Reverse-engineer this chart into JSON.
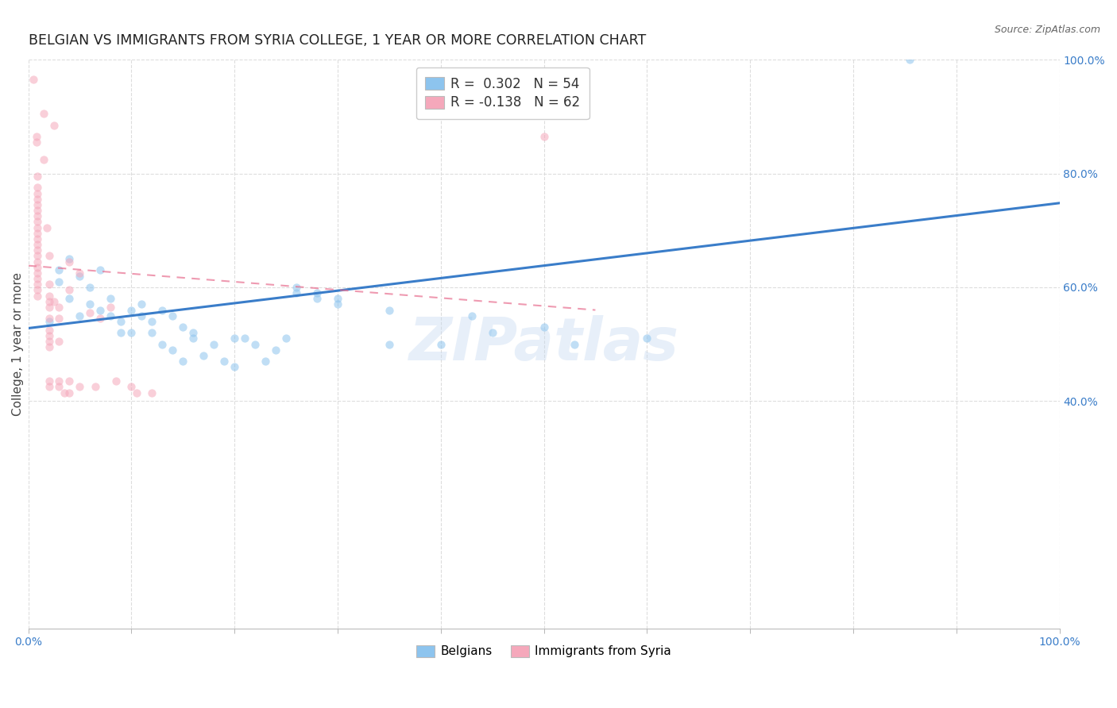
{
  "title": "BELGIAN VS IMMIGRANTS FROM SYRIA COLLEGE, 1 YEAR OR MORE CORRELATION CHART",
  "source": "Source: ZipAtlas.com",
  "ylabel": "College, 1 year or more",
  "xlim": [
    0.0,
    1.0
  ],
  "ylim": [
    0.0,
    1.0
  ],
  "watermark": "ZIPatlas",
  "blue_scatter": [
    [
      0.02,
      0.54
    ],
    [
      0.03,
      0.61
    ],
    [
      0.03,
      0.63
    ],
    [
      0.04,
      0.58
    ],
    [
      0.04,
      0.65
    ],
    [
      0.05,
      0.62
    ],
    [
      0.05,
      0.55
    ],
    [
      0.06,
      0.6
    ],
    [
      0.06,
      0.57
    ],
    [
      0.07,
      0.63
    ],
    [
      0.07,
      0.56
    ],
    [
      0.08,
      0.55
    ],
    [
      0.08,
      0.58
    ],
    [
      0.09,
      0.54
    ],
    [
      0.09,
      0.52
    ],
    [
      0.1,
      0.56
    ],
    [
      0.1,
      0.52
    ],
    [
      0.11,
      0.57
    ],
    [
      0.11,
      0.55
    ],
    [
      0.12,
      0.54
    ],
    [
      0.12,
      0.52
    ],
    [
      0.13,
      0.56
    ],
    [
      0.13,
      0.5
    ],
    [
      0.14,
      0.55
    ],
    [
      0.14,
      0.49
    ],
    [
      0.15,
      0.53
    ],
    [
      0.15,
      0.47
    ],
    [
      0.16,
      0.52
    ],
    [
      0.16,
      0.51
    ],
    [
      0.17,
      0.48
    ],
    [
      0.18,
      0.5
    ],
    [
      0.19,
      0.47
    ],
    [
      0.2,
      0.51
    ],
    [
      0.2,
      0.46
    ],
    [
      0.21,
      0.51
    ],
    [
      0.22,
      0.5
    ],
    [
      0.23,
      0.47
    ],
    [
      0.24,
      0.49
    ],
    [
      0.25,
      0.51
    ],
    [
      0.26,
      0.6
    ],
    [
      0.26,
      0.59
    ],
    [
      0.28,
      0.58
    ],
    [
      0.28,
      0.59
    ],
    [
      0.3,
      0.58
    ],
    [
      0.3,
      0.57
    ],
    [
      0.35,
      0.56
    ],
    [
      0.35,
      0.5
    ],
    [
      0.4,
      0.5
    ],
    [
      0.43,
      0.55
    ],
    [
      0.45,
      0.52
    ],
    [
      0.5,
      0.53
    ],
    [
      0.53,
      0.5
    ],
    [
      0.6,
      0.51
    ],
    [
      0.855,
      1.0
    ]
  ],
  "pink_scatter": [
    [
      0.005,
      0.965
    ],
    [
      0.008,
      0.865
    ],
    [
      0.008,
      0.855
    ],
    [
      0.009,
      0.795
    ],
    [
      0.009,
      0.775
    ],
    [
      0.009,
      0.765
    ],
    [
      0.009,
      0.755
    ],
    [
      0.009,
      0.745
    ],
    [
      0.009,
      0.735
    ],
    [
      0.009,
      0.725
    ],
    [
      0.009,
      0.715
    ],
    [
      0.009,
      0.705
    ],
    [
      0.009,
      0.695
    ],
    [
      0.009,
      0.685
    ],
    [
      0.009,
      0.675
    ],
    [
      0.009,
      0.665
    ],
    [
      0.009,
      0.655
    ],
    [
      0.009,
      0.645
    ],
    [
      0.009,
      0.635
    ],
    [
      0.009,
      0.625
    ],
    [
      0.009,
      0.615
    ],
    [
      0.009,
      0.605
    ],
    [
      0.009,
      0.595
    ],
    [
      0.009,
      0.585
    ],
    [
      0.015,
      0.905
    ],
    [
      0.015,
      0.825
    ],
    [
      0.018,
      0.705
    ],
    [
      0.02,
      0.655
    ],
    [
      0.02,
      0.605
    ],
    [
      0.02,
      0.585
    ],
    [
      0.02,
      0.575
    ],
    [
      0.02,
      0.565
    ],
    [
      0.02,
      0.545
    ],
    [
      0.02,
      0.525
    ],
    [
      0.02,
      0.515
    ],
    [
      0.02,
      0.505
    ],
    [
      0.02,
      0.495
    ],
    [
      0.02,
      0.435
    ],
    [
      0.02,
      0.425
    ],
    [
      0.025,
      0.885
    ],
    [
      0.025,
      0.575
    ],
    [
      0.03,
      0.565
    ],
    [
      0.03,
      0.545
    ],
    [
      0.03,
      0.505
    ],
    [
      0.03,
      0.435
    ],
    [
      0.03,
      0.425
    ],
    [
      0.035,
      0.415
    ],
    [
      0.04,
      0.645
    ],
    [
      0.04,
      0.595
    ],
    [
      0.04,
      0.435
    ],
    [
      0.04,
      0.415
    ],
    [
      0.05,
      0.625
    ],
    [
      0.05,
      0.425
    ],
    [
      0.06,
      0.555
    ],
    [
      0.065,
      0.425
    ],
    [
      0.07,
      0.545
    ],
    [
      0.08,
      0.565
    ],
    [
      0.085,
      0.435
    ],
    [
      0.1,
      0.425
    ],
    [
      0.105,
      0.415
    ],
    [
      0.12,
      0.415
    ],
    [
      0.5,
      0.865
    ]
  ],
  "blue_line_x": [
    0.0,
    1.0
  ],
  "blue_line_y": [
    0.528,
    0.748
  ],
  "pink_line_x": [
    0.0,
    0.55
  ],
  "pink_line_y": [
    0.638,
    0.56
  ],
  "blue_scatter_color": "#8DC4EE",
  "pink_scatter_color": "#F5A8BB",
  "blue_line_color": "#3A7DC9",
  "pink_line_color": "#E87090",
  "grid_color": "#DDDDDD",
  "background_color": "#FFFFFF",
  "title_fontsize": 12.5,
  "axis_label_fontsize": 11,
  "tick_label_color_blue": "#3A7DC9",
  "tick_label_fontsize": 10,
  "scatter_size": 55,
  "scatter_alpha": 0.55
}
